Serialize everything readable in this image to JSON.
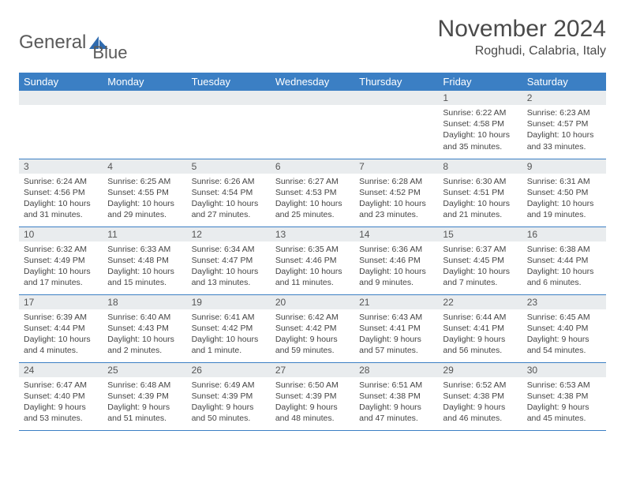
{
  "logo": {
    "text1": "General",
    "text2": "Blue"
  },
  "title": "November 2024",
  "location": "Roghudi, Calabria, Italy",
  "colors": {
    "header_bg": "#3b7fc4",
    "header_text": "#ffffff",
    "daynum_bg": "#e9ecee",
    "border": "#3b7fc4",
    "body_text": "#444444",
    "title_text": "#4a4a4a"
  },
  "weekdays": [
    "Sunday",
    "Monday",
    "Tuesday",
    "Wednesday",
    "Thursday",
    "Friday",
    "Saturday"
  ],
  "weeks": [
    [
      {
        "day": "",
        "sunrise": "",
        "sunset": "",
        "daylight": ""
      },
      {
        "day": "",
        "sunrise": "",
        "sunset": "",
        "daylight": ""
      },
      {
        "day": "",
        "sunrise": "",
        "sunset": "",
        "daylight": ""
      },
      {
        "day": "",
        "sunrise": "",
        "sunset": "",
        "daylight": ""
      },
      {
        "day": "",
        "sunrise": "",
        "sunset": "",
        "daylight": ""
      },
      {
        "day": "1",
        "sunrise": "Sunrise: 6:22 AM",
        "sunset": "Sunset: 4:58 PM",
        "daylight": "Daylight: 10 hours and 35 minutes."
      },
      {
        "day": "2",
        "sunrise": "Sunrise: 6:23 AM",
        "sunset": "Sunset: 4:57 PM",
        "daylight": "Daylight: 10 hours and 33 minutes."
      }
    ],
    [
      {
        "day": "3",
        "sunrise": "Sunrise: 6:24 AM",
        "sunset": "Sunset: 4:56 PM",
        "daylight": "Daylight: 10 hours and 31 minutes."
      },
      {
        "day": "4",
        "sunrise": "Sunrise: 6:25 AM",
        "sunset": "Sunset: 4:55 PM",
        "daylight": "Daylight: 10 hours and 29 minutes."
      },
      {
        "day": "5",
        "sunrise": "Sunrise: 6:26 AM",
        "sunset": "Sunset: 4:54 PM",
        "daylight": "Daylight: 10 hours and 27 minutes."
      },
      {
        "day": "6",
        "sunrise": "Sunrise: 6:27 AM",
        "sunset": "Sunset: 4:53 PM",
        "daylight": "Daylight: 10 hours and 25 minutes."
      },
      {
        "day": "7",
        "sunrise": "Sunrise: 6:28 AM",
        "sunset": "Sunset: 4:52 PM",
        "daylight": "Daylight: 10 hours and 23 minutes."
      },
      {
        "day": "8",
        "sunrise": "Sunrise: 6:30 AM",
        "sunset": "Sunset: 4:51 PM",
        "daylight": "Daylight: 10 hours and 21 minutes."
      },
      {
        "day": "9",
        "sunrise": "Sunrise: 6:31 AM",
        "sunset": "Sunset: 4:50 PM",
        "daylight": "Daylight: 10 hours and 19 minutes."
      }
    ],
    [
      {
        "day": "10",
        "sunrise": "Sunrise: 6:32 AM",
        "sunset": "Sunset: 4:49 PM",
        "daylight": "Daylight: 10 hours and 17 minutes."
      },
      {
        "day": "11",
        "sunrise": "Sunrise: 6:33 AM",
        "sunset": "Sunset: 4:48 PM",
        "daylight": "Daylight: 10 hours and 15 minutes."
      },
      {
        "day": "12",
        "sunrise": "Sunrise: 6:34 AM",
        "sunset": "Sunset: 4:47 PM",
        "daylight": "Daylight: 10 hours and 13 minutes."
      },
      {
        "day": "13",
        "sunrise": "Sunrise: 6:35 AM",
        "sunset": "Sunset: 4:46 PM",
        "daylight": "Daylight: 10 hours and 11 minutes."
      },
      {
        "day": "14",
        "sunrise": "Sunrise: 6:36 AM",
        "sunset": "Sunset: 4:46 PM",
        "daylight": "Daylight: 10 hours and 9 minutes."
      },
      {
        "day": "15",
        "sunrise": "Sunrise: 6:37 AM",
        "sunset": "Sunset: 4:45 PM",
        "daylight": "Daylight: 10 hours and 7 minutes."
      },
      {
        "day": "16",
        "sunrise": "Sunrise: 6:38 AM",
        "sunset": "Sunset: 4:44 PM",
        "daylight": "Daylight: 10 hours and 6 minutes."
      }
    ],
    [
      {
        "day": "17",
        "sunrise": "Sunrise: 6:39 AM",
        "sunset": "Sunset: 4:44 PM",
        "daylight": "Daylight: 10 hours and 4 minutes."
      },
      {
        "day": "18",
        "sunrise": "Sunrise: 6:40 AM",
        "sunset": "Sunset: 4:43 PM",
        "daylight": "Daylight: 10 hours and 2 minutes."
      },
      {
        "day": "19",
        "sunrise": "Sunrise: 6:41 AM",
        "sunset": "Sunset: 4:42 PM",
        "daylight": "Daylight: 10 hours and 1 minute."
      },
      {
        "day": "20",
        "sunrise": "Sunrise: 6:42 AM",
        "sunset": "Sunset: 4:42 PM",
        "daylight": "Daylight: 9 hours and 59 minutes."
      },
      {
        "day": "21",
        "sunrise": "Sunrise: 6:43 AM",
        "sunset": "Sunset: 4:41 PM",
        "daylight": "Daylight: 9 hours and 57 minutes."
      },
      {
        "day": "22",
        "sunrise": "Sunrise: 6:44 AM",
        "sunset": "Sunset: 4:41 PM",
        "daylight": "Daylight: 9 hours and 56 minutes."
      },
      {
        "day": "23",
        "sunrise": "Sunrise: 6:45 AM",
        "sunset": "Sunset: 4:40 PM",
        "daylight": "Daylight: 9 hours and 54 minutes."
      }
    ],
    [
      {
        "day": "24",
        "sunrise": "Sunrise: 6:47 AM",
        "sunset": "Sunset: 4:40 PM",
        "daylight": "Daylight: 9 hours and 53 minutes."
      },
      {
        "day": "25",
        "sunrise": "Sunrise: 6:48 AM",
        "sunset": "Sunset: 4:39 PM",
        "daylight": "Daylight: 9 hours and 51 minutes."
      },
      {
        "day": "26",
        "sunrise": "Sunrise: 6:49 AM",
        "sunset": "Sunset: 4:39 PM",
        "daylight": "Daylight: 9 hours and 50 minutes."
      },
      {
        "day": "27",
        "sunrise": "Sunrise: 6:50 AM",
        "sunset": "Sunset: 4:39 PM",
        "daylight": "Daylight: 9 hours and 48 minutes."
      },
      {
        "day": "28",
        "sunrise": "Sunrise: 6:51 AM",
        "sunset": "Sunset: 4:38 PM",
        "daylight": "Daylight: 9 hours and 47 minutes."
      },
      {
        "day": "29",
        "sunrise": "Sunrise: 6:52 AM",
        "sunset": "Sunset: 4:38 PM",
        "daylight": "Daylight: 9 hours and 46 minutes."
      },
      {
        "day": "30",
        "sunrise": "Sunrise: 6:53 AM",
        "sunset": "Sunset: 4:38 PM",
        "daylight": "Daylight: 9 hours and 45 minutes."
      }
    ]
  ]
}
